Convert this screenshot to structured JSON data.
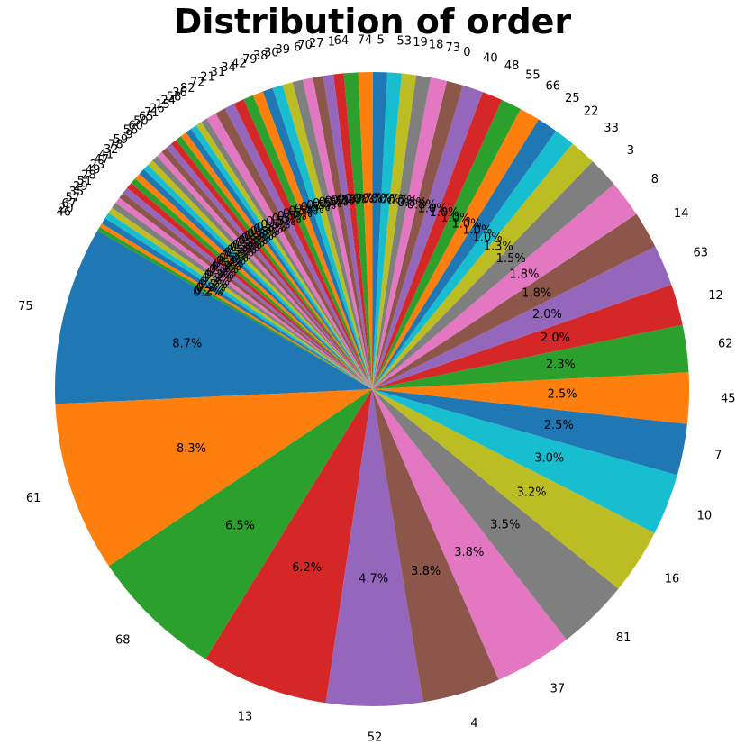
{
  "chart_data": {
    "type": "pie",
    "title": "Distribution of order",
    "start_angle_deg": 150,
    "direction": "counterclockwise",
    "slices": [
      {
        "label": "75",
        "value": 8.7
      },
      {
        "label": "61",
        "value": 8.3
      },
      {
        "label": "68",
        "value": 6.5
      },
      {
        "label": "13",
        "value": 6.2
      },
      {
        "label": "52",
        "value": 4.7
      },
      {
        "label": "4",
        "value": 3.8
      },
      {
        "label": "37",
        "value": 3.8
      },
      {
        "label": "81",
        "value": 3.5
      },
      {
        "label": "16",
        "value": 3.2
      },
      {
        "label": "10",
        "value": 3.0
      },
      {
        "label": "7",
        "value": 2.5
      },
      {
        "label": "45",
        "value": 2.5
      },
      {
        "label": "62",
        "value": 2.3
      },
      {
        "label": "12",
        "value": 2.0
      },
      {
        "label": "63",
        "value": 2.0
      },
      {
        "label": "14",
        "value": 1.8
      },
      {
        "label": "8",
        "value": 1.8
      },
      {
        "label": "3",
        "value": 1.5
      },
      {
        "label": "33",
        "value": 1.3
      },
      {
        "label": "22",
        "value": 1.0
      },
      {
        "label": "25",
        "value": 1.0
      },
      {
        "label": "66",
        "value": 1.0
      },
      {
        "label": "55",
        "value": 1.0
      },
      {
        "label": "48",
        "value": 1.0
      },
      {
        "label": "40",
        "value": 1.0
      },
      {
        "label": "0",
        "value": 0.8
      },
      {
        "label": "73",
        "value": 0.8
      },
      {
        "label": "18",
        "value": 0.7
      },
      {
        "label": "19",
        "value": 0.7
      },
      {
        "label": "53",
        "value": 0.7
      },
      {
        "label": "5",
        "value": 0.7
      },
      {
        "label": "74",
        "value": 0.7
      },
      {
        "label": "64",
        "value": 0.7
      },
      {
        "label": "1",
        "value": 0.5
      },
      {
        "label": "27",
        "value": 0.5
      },
      {
        "label": "70",
        "value": 0.5
      },
      {
        "label": "6",
        "value": 0.5
      },
      {
        "label": "39",
        "value": 0.5
      },
      {
        "label": "30",
        "value": 0.5
      },
      {
        "label": "38",
        "value": 0.5
      },
      {
        "label": "79",
        "value": 0.5
      },
      {
        "label": "42",
        "value": 0.5
      },
      {
        "label": "34",
        "value": 0.5
      },
      {
        "label": "31",
        "value": 0.5
      },
      {
        "label": "21",
        "value": 0.5
      },
      {
        "label": "72",
        "value": 0.5
      },
      {
        "label": "82",
        "value": 0.5
      },
      {
        "label": "36",
        "value": 0.3
      },
      {
        "label": "58",
        "value": 0.3
      },
      {
        "label": "24",
        "value": 0.3
      },
      {
        "label": "15",
        "value": 0.3
      },
      {
        "label": "26",
        "value": 0.3
      },
      {
        "label": "71",
        "value": 0.3
      },
      {
        "label": "65",
        "value": 0.3
      },
      {
        "label": "50",
        "value": 0.3
      },
      {
        "label": "60",
        "value": 0.3
      },
      {
        "label": "56",
        "value": 0.3
      },
      {
        "label": "9",
        "value": 0.3
      },
      {
        "label": "59",
        "value": 0.3
      },
      {
        "label": "78",
        "value": 0.3
      },
      {
        "label": "32",
        "value": 0.3
      },
      {
        "label": "41",
        "value": 0.3
      },
      {
        "label": "47",
        "value": 0.3
      },
      {
        "label": "23",
        "value": 0.3
      },
      {
        "label": "49",
        "value": 0.3
      },
      {
        "label": "28",
        "value": 0.3
      },
      {
        "label": "51",
        "value": 0.3
      },
      {
        "label": "29",
        "value": 0.3
      },
      {
        "label": "35",
        "value": 0.3
      },
      {
        "label": "57",
        "value": 0.3
      },
      {
        "label": "67",
        "value": 0.3
      },
      {
        "label": "20",
        "value": 0.2
      },
      {
        "label": "46",
        "value": 0.2
      }
    ],
    "colors": [
      "#1f77b4",
      "#ff7f0e",
      "#2ca02c",
      "#d62728",
      "#9467bd",
      "#8c564b",
      "#e377c2",
      "#7f7f7f",
      "#bcbd22",
      "#17becf"
    ]
  }
}
